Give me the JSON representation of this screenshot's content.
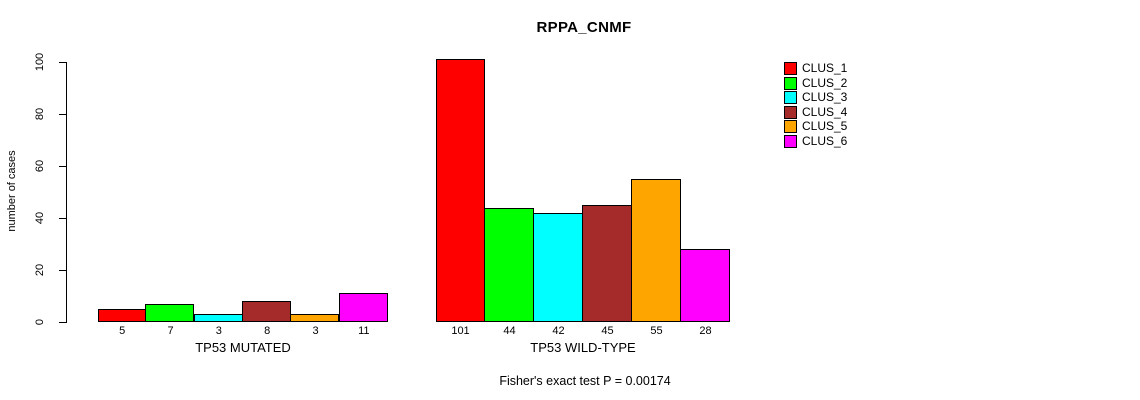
{
  "title": "RPPA_CNMF",
  "footer": "Fisher's exact test P = 0.00174",
  "y_axis": {
    "label": "number of cases"
  },
  "legend": {
    "items": [
      {
        "label": "CLUS_1",
        "color": "#FF0000"
      },
      {
        "label": "CLUS_2",
        "color": "#00FF00"
      },
      {
        "label": "CLUS_3",
        "color": "#00FFFF"
      },
      {
        "label": "CLUS_4",
        "color": "#A52A2A"
      },
      {
        "label": "CLUS_5",
        "color": "#FFA500"
      },
      {
        "label": "CLUS_6",
        "color": "#FF00FF"
      }
    ]
  },
  "chart_data": {
    "type": "bar",
    "title": "RPPA_CNMF",
    "ylabel": "number of cases",
    "ylim": [
      0,
      100
    ],
    "yticks": [
      0,
      20,
      40,
      60,
      80,
      100
    ],
    "grid": false,
    "legend_position": "top-right",
    "series": [
      {
        "name": "CLUS_1",
        "color": "#FF0000"
      },
      {
        "name": "CLUS_2",
        "color": "#00FF00"
      },
      {
        "name": "CLUS_3",
        "color": "#00FFFF"
      },
      {
        "name": "CLUS_4",
        "color": "#A52A2A"
      },
      {
        "name": "CLUS_5",
        "color": "#FFA500"
      },
      {
        "name": "CLUS_6",
        "color": "#FF00FF"
      }
    ],
    "groups": [
      {
        "label": "TP53 MUTATED",
        "values": [
          5,
          7,
          3,
          8,
          3,
          11
        ]
      },
      {
        "label": "TP53 WILD-TYPE",
        "values": [
          101,
          44,
          42,
          45,
          55,
          28
        ]
      }
    ],
    "annotation": "Fisher's exact test P = 0.00174"
  }
}
